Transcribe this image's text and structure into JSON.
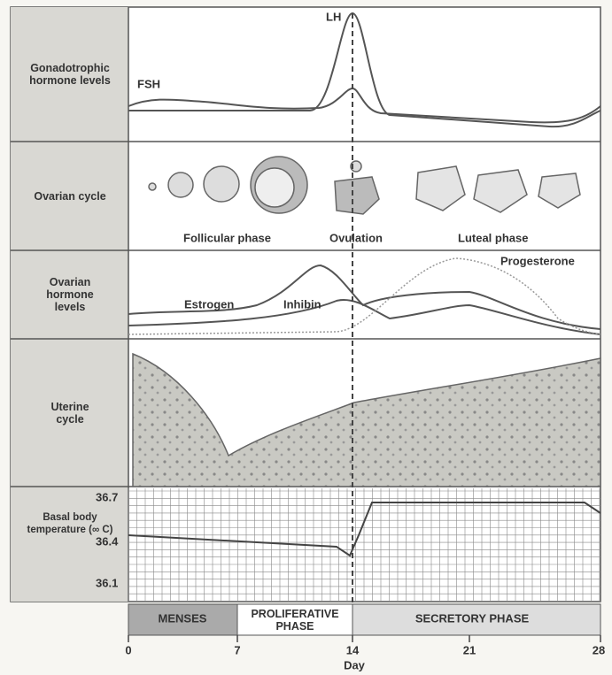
{
  "panels": [
    {
      "label": "Gonadotrophic hormone levels"
    },
    {
      "label": "Ovarian cycle"
    },
    {
      "label": "Ovarian hormone levels"
    },
    {
      "label": "Uterine cycle"
    },
    {
      "label": "Basal body temperature (∞ C)"
    }
  ],
  "gonadotrophic": {
    "lh": "LH",
    "fsh": "FSH"
  },
  "ovarian_cycle": {
    "follicular": "Follicular phase",
    "ovulation": "Ovulation",
    "luteal": "Luteal phase"
  },
  "ovarian_hormones": {
    "estrogen": "Estrogen",
    "inhibin": "Inhibin",
    "progesterone": "Progesterone"
  },
  "temperature_ticks": [
    "36.7",
    "36.4",
    "36.1"
  ],
  "phases": [
    "MENSES",
    "PROLIFERATIVE PHASE",
    "SECRETORY PHASE"
  ],
  "days": [
    "0",
    "7",
    "14",
    "21",
    "28"
  ],
  "day_label": "Day"
}
